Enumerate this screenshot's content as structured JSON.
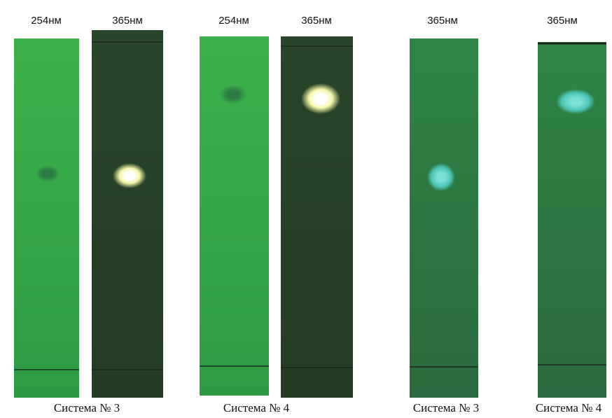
{
  "plates": [
    {
      "label": "254нм"
    },
    {
      "label": "365нм"
    },
    {
      "label": "254нм"
    },
    {
      "label": "365нм"
    },
    {
      "label": "365нм"
    },
    {
      "label": "365нм"
    }
  ],
  "captions": [
    "Система № 3",
    "Система № 4",
    "Система № 3",
    "Система № 4"
  ]
}
